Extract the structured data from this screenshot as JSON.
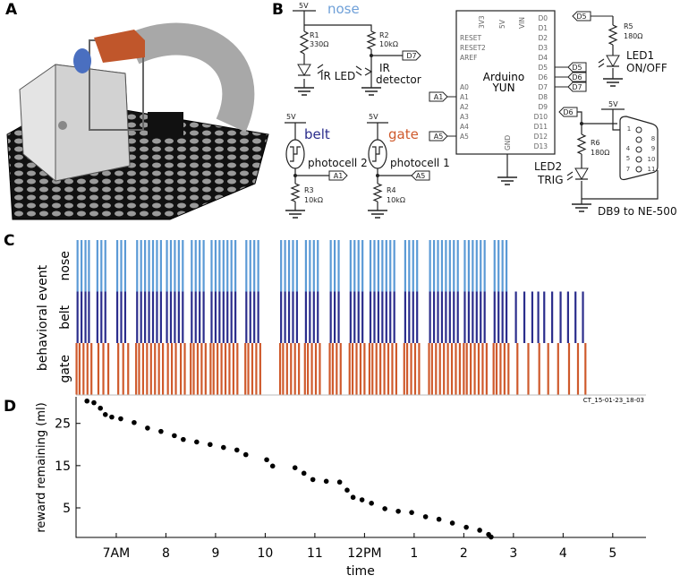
{
  "panels": {
    "a": "A",
    "b": "B",
    "c": "C",
    "d": "D"
  },
  "circuit": {
    "labels": [
      "5V",
      "nose",
      "R1",
      "330Ω",
      "R2",
      "10kΩ",
      "D7",
      "IR LED",
      "IR",
      "detector",
      "5V",
      "belt",
      "photocell 2",
      "A1",
      "R3",
      "10kΩ",
      "5V",
      "gate",
      "photocell 1",
      "A5",
      "R4",
      "10kΩ"
    ],
    "arduino": {
      "name": "Arduino",
      "model": "YUN",
      "gnd": "GND",
      "top_pins": [
        "3V3",
        "5V",
        "VIN"
      ],
      "left_pins": [
        "RESET",
        "RESET2",
        "AREF",
        "A0",
        "A1",
        "A2",
        "A3",
        "A4",
        "A5"
      ],
      "right_pins": [
        "D0",
        "D1",
        "D2",
        "D3",
        "D4",
        "D5",
        "D6",
        "D7",
        "D8",
        "D9",
        "D10",
        "D11",
        "D12",
        "D13"
      ],
      "in_tags": [
        "A1",
        "A5"
      ],
      "out_tags": [
        "D5",
        "D6",
        "D7"
      ]
    },
    "right": {
      "labels": [
        "D5",
        "R5",
        "180Ω",
        "LED1",
        "ON/OFF",
        "D6",
        "5V",
        "R6",
        "180Ω",
        "LED2",
        "TRIG",
        "DB9 to NE-500"
      ],
      "db9_pins": [
        "1",
        "4",
        "5",
        "7",
        "8",
        "9",
        "10",
        "11"
      ]
    }
  },
  "chart_data": [
    {
      "type": "raster",
      "y_label": "behavioral event",
      "annotation": "CT_15-01-23_18-03",
      "xlim": [
        6.19,
        17.67
      ],
      "series": [
        {
          "name": "nose",
          "color": "#5b9ad6",
          "x": [
            6.22,
            6.3,
            6.38,
            6.45,
            6.62,
            6.7,
            6.78,
            7.02,
            7.1,
            7.18,
            7.42,
            7.5,
            7.58,
            7.66,
            7.74,
            7.82,
            7.9,
            8.02,
            8.1,
            8.18,
            8.26,
            8.34,
            8.52,
            8.6,
            8.68,
            8.76,
            8.92,
            9.0,
            9.08,
            9.16,
            9.24,
            9.32,
            9.4,
            9.62,
            9.7,
            9.78,
            9.86,
            10.32,
            10.4,
            10.48,
            10.56,
            10.64,
            10.82,
            10.9,
            10.98,
            11.06,
            11.32,
            11.4,
            11.48,
            11.72,
            11.8,
            11.88,
            11.96,
            12.12,
            12.2,
            12.28,
            12.36,
            12.44,
            12.52,
            12.6,
            12.82,
            12.9,
            12.98,
            13.06,
            13.32,
            13.4,
            13.48,
            13.56,
            13.64,
            13.72,
            13.8,
            13.88,
            14.02,
            14.1,
            14.18,
            14.26,
            14.34,
            14.42,
            14.62,
            14.7,
            14.78,
            14.86
          ]
        },
        {
          "name": "belt",
          "color": "#2b2d8c",
          "x": [
            6.22,
            6.3,
            6.38,
            6.45,
            6.62,
            6.7,
            6.78,
            7.02,
            7.1,
            7.18,
            7.42,
            7.5,
            7.58,
            7.66,
            7.74,
            7.82,
            7.9,
            8.02,
            8.1,
            8.18,
            8.26,
            8.34,
            8.52,
            8.6,
            8.68,
            8.76,
            8.92,
            9.0,
            9.08,
            9.16,
            9.24,
            9.32,
            9.4,
            9.62,
            9.7,
            9.78,
            9.86,
            10.32,
            10.4,
            10.48,
            10.56,
            10.64,
            10.82,
            10.9,
            10.98,
            11.06,
            11.32,
            11.4,
            11.48,
            11.72,
            11.8,
            11.88,
            11.96,
            12.12,
            12.2,
            12.28,
            12.36,
            12.44,
            12.52,
            12.6,
            12.82,
            12.9,
            12.98,
            13.06,
            13.32,
            13.4,
            13.48,
            13.56,
            13.64,
            13.72,
            13.8,
            13.88,
            14.02,
            14.1,
            14.18,
            14.26,
            14.34,
            14.42,
            14.62,
            14.7,
            14.78,
            14.86,
            15.05,
            15.22,
            15.38,
            15.5,
            15.62,
            15.78,
            15.95,
            16.1,
            16.25,
            16.4
          ]
        },
        {
          "name": "gate",
          "color": "#cf5a2c",
          "x": [
            6.2,
            6.26,
            6.34,
            6.42,
            6.5,
            6.64,
            6.74,
            6.84,
            7.04,
            7.14,
            7.24,
            7.4,
            7.46,
            7.54,
            7.62,
            7.7,
            7.78,
            7.86,
            7.94,
            8.04,
            8.12,
            8.2,
            8.3,
            8.38,
            8.5,
            8.56,
            8.64,
            8.72,
            8.8,
            8.9,
            8.96,
            9.04,
            9.12,
            9.2,
            9.28,
            9.36,
            9.44,
            9.6,
            9.66,
            9.74,
            9.82,
            9.9,
            10.3,
            10.36,
            10.44,
            10.52,
            10.6,
            10.68,
            10.8,
            10.86,
            10.94,
            11.02,
            11.1,
            11.3,
            11.36,
            11.44,
            11.52,
            11.7,
            11.76,
            11.84,
            11.92,
            12.0,
            12.1,
            12.16,
            12.24,
            12.32,
            12.4,
            12.48,
            12.56,
            12.64,
            12.8,
            12.86,
            12.94,
            13.02,
            13.1,
            13.3,
            13.36,
            13.44,
            13.52,
            13.6,
            13.68,
            13.76,
            13.84,
            13.92,
            14.0,
            14.06,
            14.14,
            14.22,
            14.3,
            14.38,
            14.46,
            14.6,
            14.66,
            14.74,
            14.82,
            14.9,
            15.08,
            15.3,
            15.52,
            15.7,
            15.9,
            16.12,
            16.3,
            16.45
          ]
        }
      ]
    },
    {
      "type": "scatter",
      "x_label": "time",
      "y_label": "reward remaining (ml)",
      "color": "#000000",
      "xlim": [
        6.19,
        17.67
      ],
      "ylim": [
        -2,
        31.3
      ],
      "xticks": [
        {
          "value": 7,
          "label": "7AM"
        },
        8,
        9,
        10,
        11,
        {
          "value": 12,
          "label": "12PM"
        },
        {
          "value": 13,
          "label": "1"
        },
        {
          "value": 14,
          "label": "2"
        },
        {
          "value": 15,
          "label": "3"
        },
        {
          "value": 16,
          "label": "4"
        },
        {
          "value": 17,
          "label": "5"
        }
      ],
      "yticks": [
        5,
        15,
        25
      ],
      "x": [
        6.41,
        6.55,
        6.68,
        6.78,
        6.91,
        7.09,
        7.36,
        7.63,
        7.9,
        8.17,
        8.35,
        8.62,
        8.89,
        9.16,
        9.43,
        9.61,
        10.03,
        10.15,
        10.6,
        10.78,
        10.96,
        11.23,
        11.5,
        11.65,
        11.77,
        11.95,
        12.14,
        12.41,
        12.68,
        12.95,
        13.23,
        13.5,
        13.77,
        14.05,
        14.32,
        14.5,
        14.55
      ],
      "values": [
        30.3,
        29.9,
        28.6,
        27.1,
        26.5,
        26.1,
        25.2,
        23.9,
        23.1,
        22.1,
        21.2,
        20.6,
        20,
        19.3,
        18.7,
        17.6,
        16.4,
        14.9,
        14.5,
        13.2,
        11.7,
        11.3,
        11.1,
        9.2,
        7.5,
        6.9,
        6.1,
        4.8,
        4.2,
        3.9,
        2.9,
        2.3,
        1.4,
        0.4,
        -0.3,
        -1.3,
        -1.9
      ]
    }
  ]
}
